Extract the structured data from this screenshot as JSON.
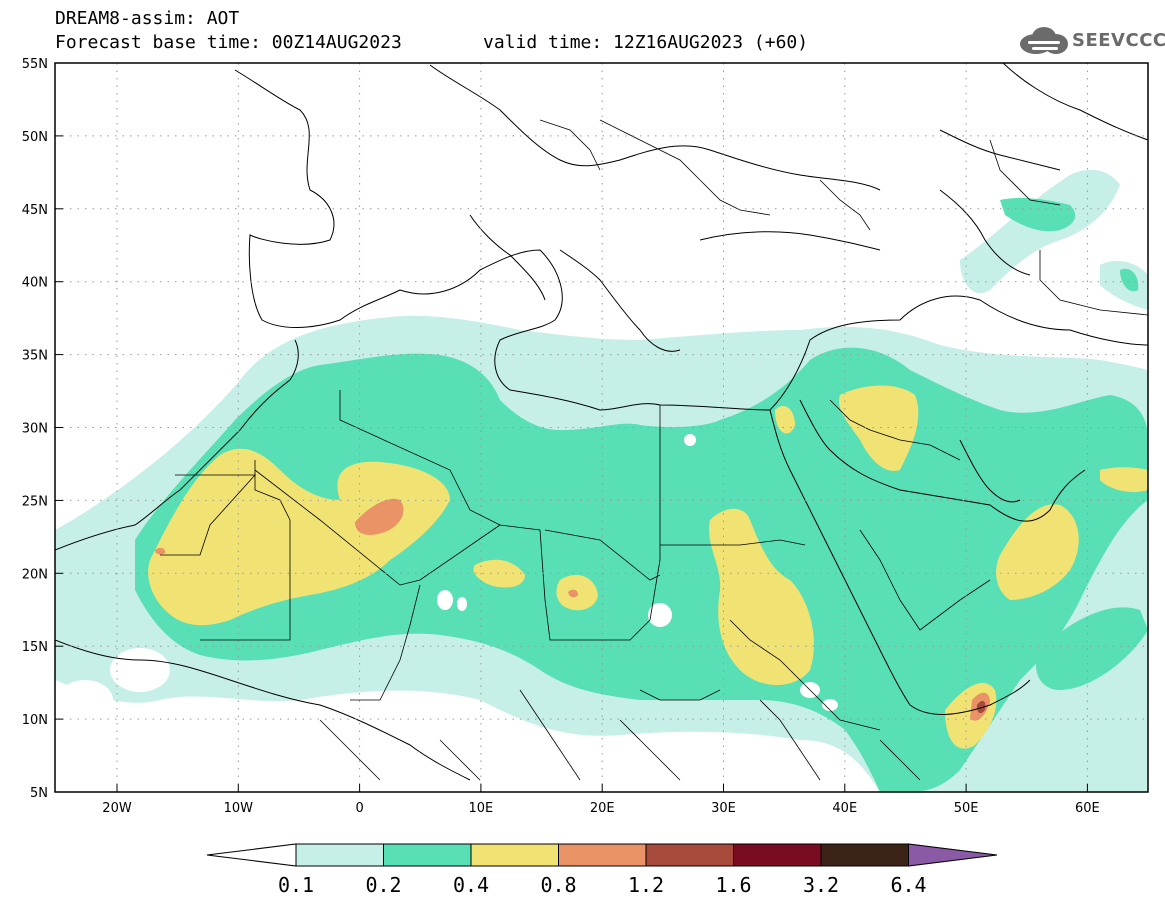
{
  "header": {
    "title_line1": "DREAM8-assim: AOT",
    "title_line2": "Forecast base time: 00Z14AUG2023",
    "valid_time": "valid time: 12Z16AUG2023 (+60)",
    "logo_text": "SEEVCCC"
  },
  "map": {
    "lon_ticks": [
      "20W",
      "10W",
      "0",
      "10E",
      "20E",
      "30E",
      "40E",
      "50E",
      "60E"
    ],
    "lat_ticks": [
      "55N",
      "50N",
      "45N",
      "40N",
      "35N",
      "30N",
      "25N",
      "20N",
      "15N",
      "10N",
      "5N"
    ]
  },
  "colorbar": {
    "labels": [
      "0.1",
      "0.2",
      "0.4",
      "0.8",
      "1.2",
      "1.6",
      "3.2",
      "6.4"
    ],
    "colors": [
      "#ffffff",
      "#c6efe7",
      "#59dfb5",
      "#f1e373",
      "#ea9367",
      "#a84a3b",
      "#7a0c21",
      "#3b2417",
      "#8a5aa6"
    ]
  }
}
